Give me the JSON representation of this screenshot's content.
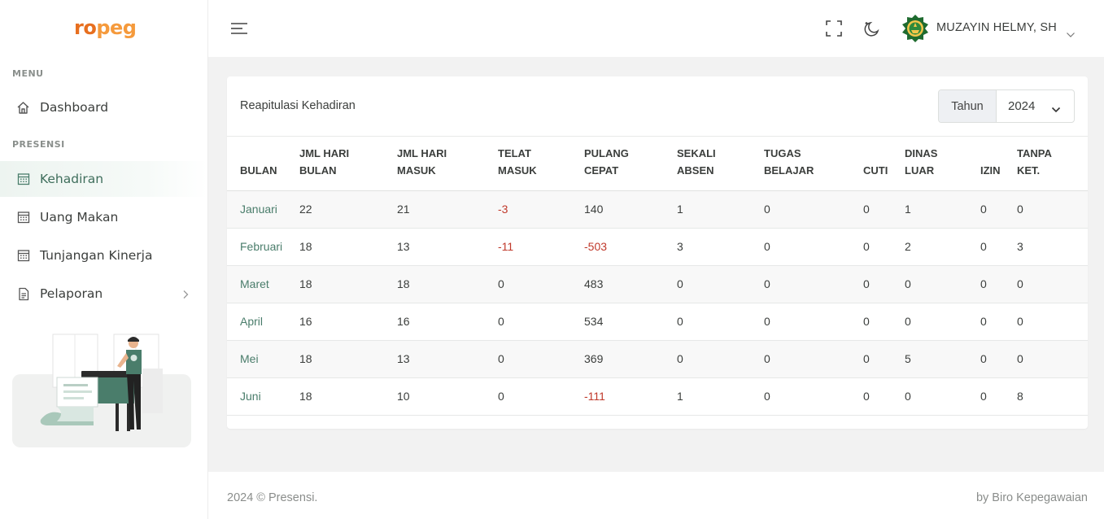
{
  "sidebar": {
    "logo_ro": "ro",
    "logo_peg": "peg",
    "menu_heading": "MENU",
    "presensi_heading": "PRESENSI",
    "items": [
      {
        "label": "Dashboard",
        "icon": "home-icon"
      },
      {
        "label": "Kehadiran",
        "icon": "calendar-icon",
        "active": true
      },
      {
        "label": "Uang Makan",
        "icon": "calendar-icon"
      },
      {
        "label": "Tunjangan Kinerja",
        "icon": "calendar-icon"
      },
      {
        "label": "Pelaporan",
        "icon": "document-icon"
      }
    ]
  },
  "topbar": {
    "user_name": "MUZAYIN HELMY, SH",
    "icons": [
      "hamburger-icon",
      "fullscreen-icon",
      "dark-mode-icon",
      "chevron-down-icon"
    ]
  },
  "card": {
    "title": "Reapitulasi Kehadiran",
    "year_label": "Tahun",
    "year_value": "2024"
  },
  "table": {
    "headers": [
      [
        "",
        "BULAN"
      ],
      [
        "JML HARI",
        "BULAN"
      ],
      [
        "JML HARI",
        "MASUK"
      ],
      [
        "TELAT",
        "MASUK"
      ],
      [
        "PULANG",
        "CEPAT"
      ],
      [
        "SEKALI",
        "ABSEN"
      ],
      [
        "TUGAS",
        "BELAJAR"
      ],
      [
        "",
        "CUTI"
      ],
      [
        "DINAS",
        "LUAR"
      ],
      [
        "",
        "IZIN"
      ],
      [
        "TANPA",
        "KET."
      ]
    ],
    "rows": [
      [
        "Januari",
        "22",
        "21",
        "-3",
        "140",
        "1",
        "0",
        "0",
        "1",
        "0",
        "0"
      ],
      [
        "Februari",
        "18",
        "13",
        "-11",
        "-503",
        "3",
        "0",
        "0",
        "2",
        "0",
        "3"
      ],
      [
        "Maret",
        "18",
        "18",
        "0",
        "483",
        "0",
        "0",
        "0",
        "0",
        "0",
        "0"
      ],
      [
        "April",
        "16",
        "16",
        "0",
        "534",
        "0",
        "0",
        "0",
        "0",
        "0",
        "0"
      ],
      [
        "Mei",
        "18",
        "13",
        "0",
        "369",
        "0",
        "0",
        "0",
        "5",
        "0",
        "0"
      ],
      [
        "Juni",
        "18",
        "10",
        "0",
        "-111",
        "1",
        "0",
        "0",
        "0",
        "0",
        "8"
      ]
    ]
  },
  "footer": {
    "copyright": "2024 © Presensi.",
    "credit": "by Biro Kepegawaian"
  },
  "colors": {
    "accent": "#4a7d6b",
    "negative": "#c0392b",
    "logo_orange": "#e76f1f"
  }
}
